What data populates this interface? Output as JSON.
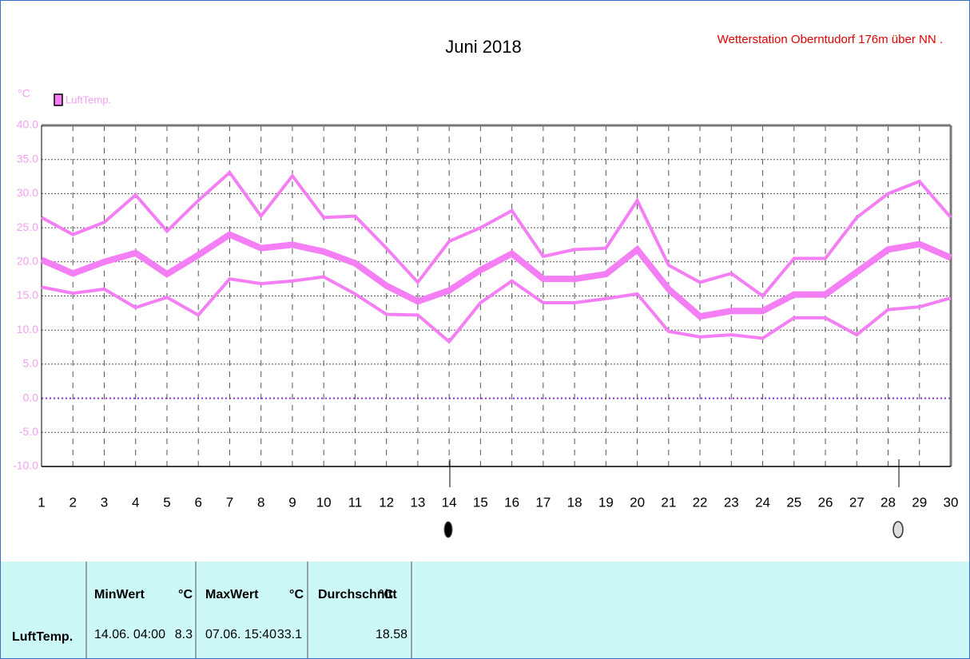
{
  "chart_data": {
    "type": "line",
    "title": "Juni 2018",
    "subtitle": "Wetterstation Oberntudorf 176m über NN .",
    "y_label": "°C",
    "legend": "LuftTemp.",
    "x": [
      1,
      2,
      3,
      4,
      5,
      6,
      7,
      8,
      9,
      10,
      11,
      12,
      13,
      14,
      15,
      16,
      17,
      18,
      19,
      20,
      21,
      22,
      23,
      24,
      25,
      26,
      27,
      28,
      29,
      30
    ],
    "series": [
      {
        "color": "#f47ff4",
        "values": [
          26.5,
          24,
          25.8,
          29.8,
          24.5,
          29,
          33.1,
          26.7,
          32.6,
          26.5,
          26.7,
          22,
          17,
          23,
          25,
          27.5,
          20.8,
          21.8,
          22,
          29,
          19.5,
          17,
          18.3,
          15,
          20.5,
          20.5,
          26.5,
          30,
          31.8,
          26.5
        ]
      },
      {
        "color": "#f47ff4",
        "values": [
          20.3,
          18.3,
          20,
          21.3,
          18.2,
          21,
          24,
          22,
          22.5,
          21.5,
          19.8,
          16.5,
          14.2,
          15.8,
          18.8,
          21.2,
          17.5,
          17.5,
          18.2,
          21.8,
          16,
          12,
          12.8,
          12.8,
          15.2,
          15.2,
          18.5,
          21.8,
          22.6,
          20.6
        ]
      },
      {
        "color": "#f47ff4",
        "values": [
          16.3,
          15.4,
          16,
          13.3,
          14.8,
          12.2,
          17.5,
          16.8,
          17.2,
          17.8,
          15.3,
          12.3,
          12.2,
          8.3,
          14,
          17.2,
          14,
          14,
          14.6,
          15.3,
          9.8,
          9,
          9.3,
          8.8,
          11.8,
          11.8,
          9.3,
          13,
          13.4,
          14.7
        ]
      }
    ],
    "xlim": [
      1,
      30
    ],
    "xticks": [
      1,
      2,
      3,
      4,
      5,
      6,
      7,
      8,
      9,
      10,
      11,
      12,
      13,
      14,
      15,
      16,
      17,
      18,
      19,
      20,
      21,
      22,
      23,
      24,
      25,
      26,
      27,
      28,
      29,
      30
    ],
    "ylim": [
      -10,
      40
    ],
    "yticks": [
      {
        "value": -10,
        "label": "-10.0"
      },
      {
        "value": -5,
        "label": "-5.0"
      },
      {
        "value": 0,
        "label": "0.0"
      },
      {
        "value": 5,
        "label": "5.0"
      },
      {
        "value": 10,
        "label": "10.0"
      },
      {
        "value": 15,
        "label": "15.0"
      },
      {
        "value": 20,
        "label": "20.0"
      },
      {
        "value": 25,
        "label": "25.0"
      },
      {
        "value": 30,
        "label": "30.0"
      },
      {
        "value": 35,
        "label": "35.0"
      },
      {
        "value": 40,
        "label": "40.0"
      }
    ],
    "grid": true
  },
  "table": {
    "header": [
      "MinWert",
      "°C",
      "MaxWert",
      "°C",
      "Durchschnitt",
      "°C"
    ],
    "rows": [
      [
        "LuftTemp.",
        "14.06. 04:00",
        "8.3",
        "07.06. 15:40",
        "33.1",
        "18.58"
      ]
    ]
  }
}
